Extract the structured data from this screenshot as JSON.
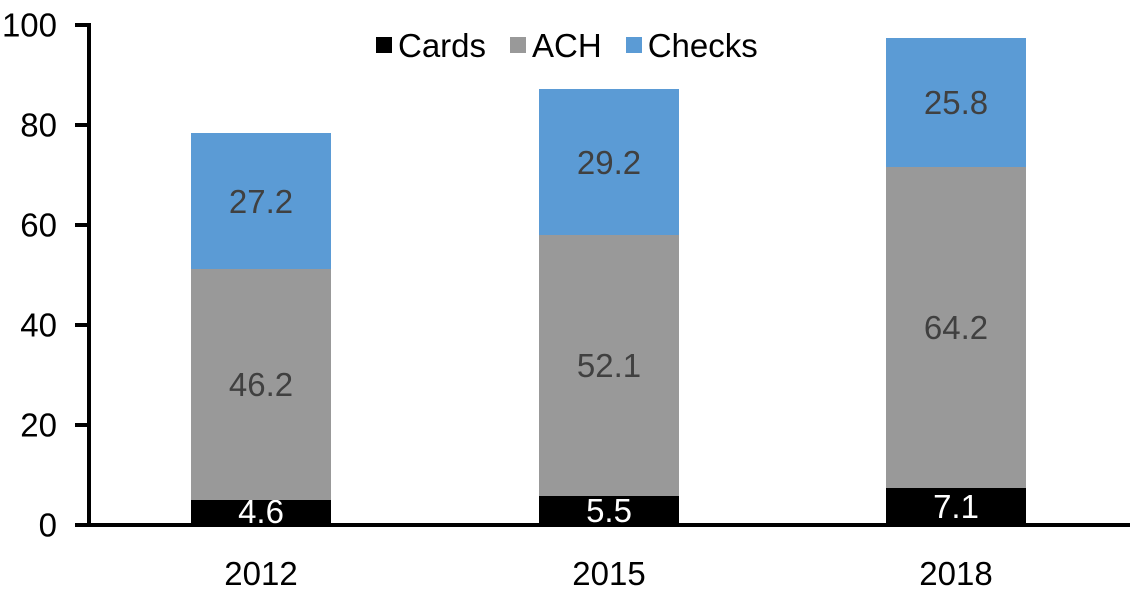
{
  "chart_data": {
    "type": "bar",
    "stacked": true,
    "title": "",
    "categories": [
      "2012",
      "2015",
      "2018"
    ],
    "series": [
      {
        "name": "Cards",
        "color": "#000000",
        "label_color": "#FFFFFF",
        "values": [
          4.6,
          5.5,
          7.1
        ]
      },
      {
        "name": "ACH",
        "color": "#999999",
        "label_color": "#404040",
        "values": [
          46.2,
          52.1,
          64.2
        ]
      },
      {
        "name": "Checks",
        "color": "#5B9BD5",
        "label_color": "#404040",
        "values": [
          27.2,
          29.2,
          25.8
        ]
      }
    ],
    "y_ticks": [
      0,
      20,
      40,
      60,
      80,
      100
    ],
    "ylim": [
      0,
      100
    ],
    "grid": false,
    "legend_position": "top",
    "axis_color": "#000000",
    "background": "#FFFFFF"
  }
}
